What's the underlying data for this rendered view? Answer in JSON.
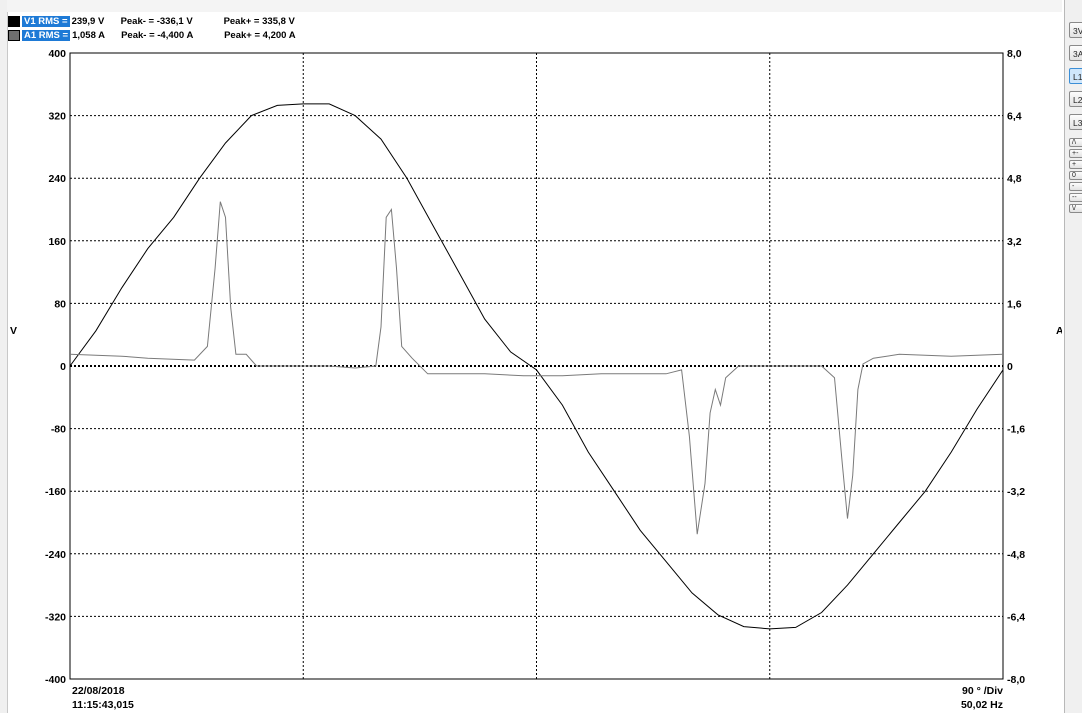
{
  "legend": [
    {
      "name": "V1 RMS =",
      "rms": "239,9 V",
      "peak_neg": "Peak- = -336,1 V",
      "peak_pos": "Peak+ = 335,8 V",
      "swatch_color": "#000000"
    },
    {
      "name": "A1 RMS =",
      "rms": "1,058 A",
      "peak_neg": "Peak- = -4,400 A",
      "peak_pos": "Peak+ = 4,200 A",
      "swatch_color": "#6e6e6e"
    }
  ],
  "side_buttons": [
    "3V",
    "3A",
    "L1",
    "L2",
    "L3"
  ],
  "side_active": "L1",
  "side_mini_buttons": [
    "/\\",
    "+-",
    "+",
    "0",
    "-",
    "--",
    "\\/"
  ],
  "chart_data": {
    "type": "line",
    "x_unit_label": "90 ° /Div",
    "frequency": "50,02 Hz",
    "date": "22/08/2018",
    "time": "11:15:43,015",
    "x_range_degrees": [
      0,
      360
    ],
    "y_left": {
      "label": "V",
      "ticks": [
        "400",
        "320",
        "240",
        "160",
        "80",
        "0",
        "-80",
        "-160",
        "-240",
        "-320",
        "-400"
      ],
      "range": [
        -400,
        400
      ]
    },
    "y_right": {
      "label": "A",
      "ticks": [
        "8,0",
        "6,4",
        "4,8",
        "3,2",
        "1,6",
        "0",
        "-1,6",
        "-3,2",
        "-4,8",
        "-6,4",
        "-8,0"
      ],
      "range": [
        -8,
        8
      ]
    },
    "grid": true,
    "series": [
      {
        "name": "V1",
        "axis": "left",
        "color": "#000000",
        "points": [
          [
            0,
            0
          ],
          [
            10,
            45
          ],
          [
            20,
            100
          ],
          [
            30,
            150
          ],
          [
            40,
            190
          ],
          [
            50,
            240
          ],
          [
            60,
            285
          ],
          [
            70,
            320
          ],
          [
            80,
            333
          ],
          [
            90,
            335
          ],
          [
            100,
            335
          ],
          [
            110,
            320
          ],
          [
            120,
            290
          ],
          [
            130,
            240
          ],
          [
            140,
            180
          ],
          [
            150,
            120
          ],
          [
            160,
            60
          ],
          [
            170,
            18
          ],
          [
            180,
            -5
          ],
          [
            190,
            -50
          ],
          [
            200,
            -110
          ],
          [
            210,
            -160
          ],
          [
            220,
            -210
          ],
          [
            230,
            -250
          ],
          [
            240,
            -290
          ],
          [
            250,
            -318
          ],
          [
            260,
            -333
          ],
          [
            270,
            -336
          ],
          [
            280,
            -334
          ],
          [
            290,
            -315
          ],
          [
            300,
            -280
          ],
          [
            310,
            -240
          ],
          [
            320,
            -200
          ],
          [
            330,
            -160
          ],
          [
            340,
            -110
          ],
          [
            350,
            -55
          ],
          [
            360,
            -5
          ]
        ]
      },
      {
        "name": "A1",
        "axis": "right",
        "color": "#7a7a7a",
        "points": [
          [
            0,
            0.3
          ],
          [
            20,
            0.25
          ],
          [
            30,
            0.2
          ],
          [
            48,
            0.15
          ],
          [
            53,
            0.5
          ],
          [
            56,
            2.5
          ],
          [
            58,
            4.2
          ],
          [
            60,
            3.8
          ],
          [
            62,
            1.5
          ],
          [
            64,
            0.3
          ],
          [
            68,
            0.3
          ],
          [
            72,
            0
          ],
          [
            85,
            0
          ],
          [
            100,
            0
          ],
          [
            110,
            -0.05
          ],
          [
            118,
            0
          ],
          [
            120,
            1.0
          ],
          [
            122,
            3.8
          ],
          [
            124,
            4.0
          ],
          [
            126,
            2.5
          ],
          [
            128,
            0.5
          ],
          [
            132,
            0.2
          ],
          [
            138,
            -0.2
          ],
          [
            145,
            -0.2
          ],
          [
            160,
            -0.2
          ],
          [
            175,
            -0.25
          ],
          [
            190,
            -0.25
          ],
          [
            205,
            -0.2
          ],
          [
            230,
            -0.2
          ],
          [
            236,
            -0.1
          ],
          [
            239,
            -1.8
          ],
          [
            242,
            -4.3
          ],
          [
            245,
            -3.0
          ],
          [
            247,
            -1.2
          ],
          [
            249,
            -0.6
          ],
          [
            251,
            -1.0
          ],
          [
            253,
            -0.3
          ],
          [
            258,
            0
          ],
          [
            275,
            0
          ],
          [
            290,
            0
          ],
          [
            295,
            -0.3
          ],
          [
            298,
            -2.5
          ],
          [
            300,
            -3.9
          ],
          [
            302,
            -2.8
          ],
          [
            304,
            -0.6
          ],
          [
            306,
            0.05
          ],
          [
            310,
            0.2
          ],
          [
            320,
            0.3
          ],
          [
            340,
            0.25
          ],
          [
            360,
            0.3
          ]
        ]
      }
    ]
  }
}
